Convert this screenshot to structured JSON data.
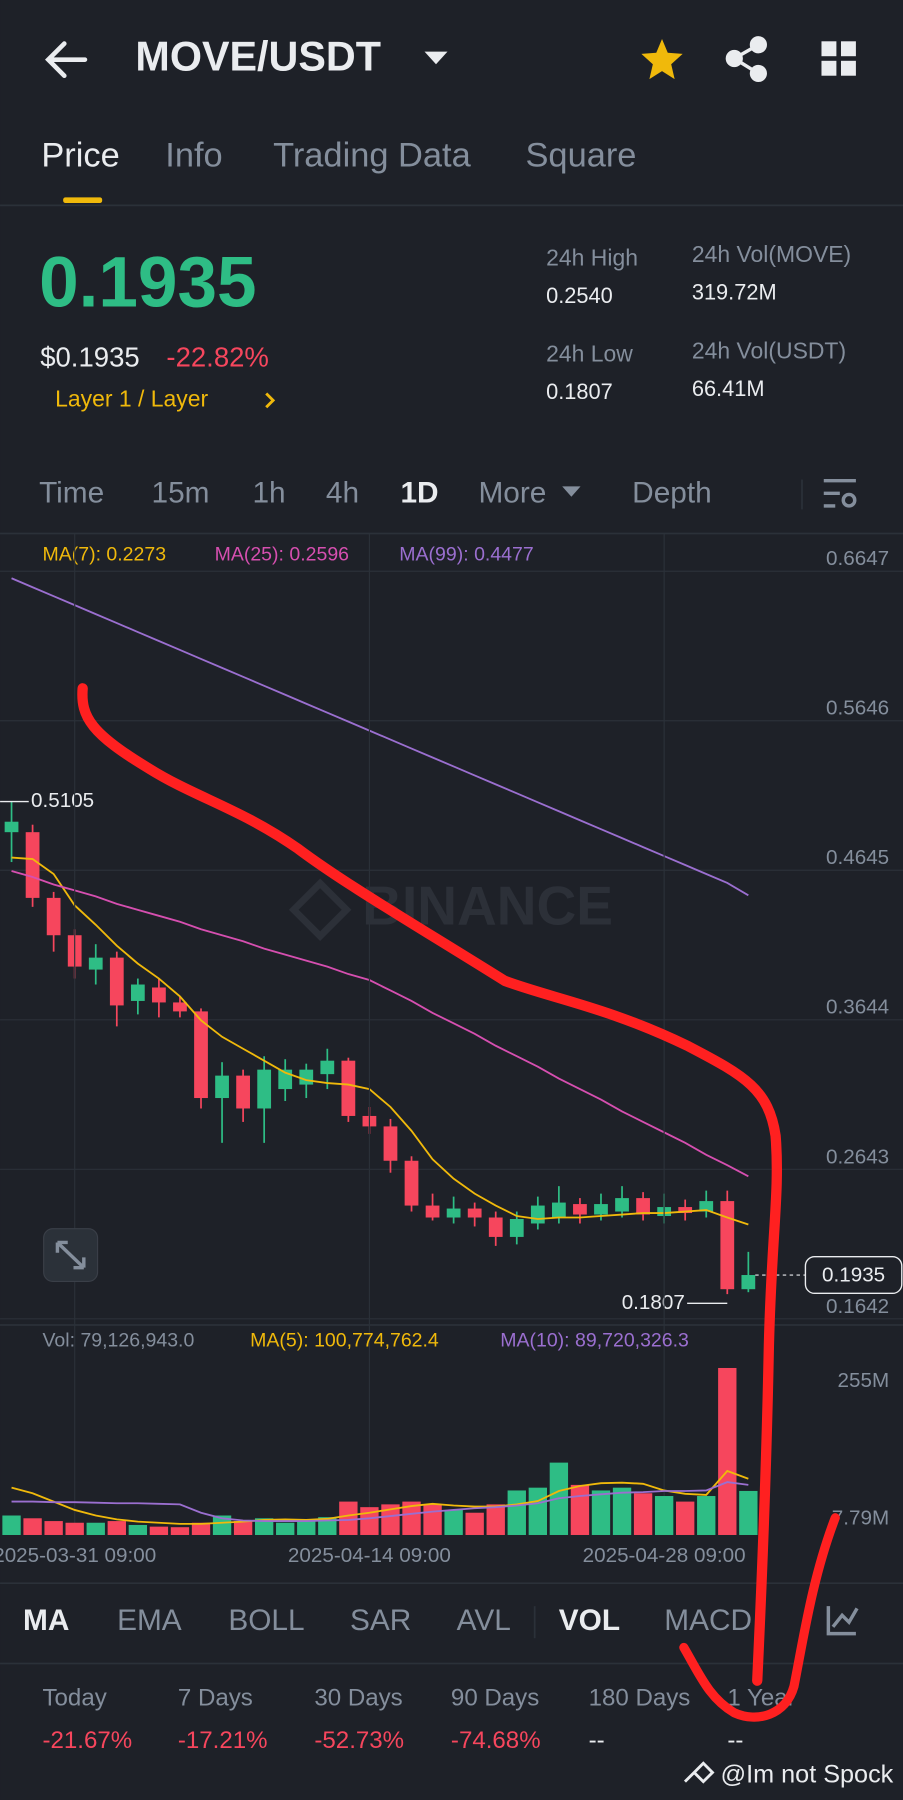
{
  "header": {
    "pair": "MOVE/USDT"
  },
  "tabs": [
    "Price",
    "Info",
    "Trading Data",
    "Square"
  ],
  "price": {
    "last": "0.1935",
    "usd": "$0.1935",
    "change": "-22.82%",
    "tag": "Layer 1 / Layer"
  },
  "stats": [
    {
      "label": "24h High",
      "value": "0.2540"
    },
    {
      "label": "24h Low",
      "value": "0.1807"
    },
    {
      "label": "24h Vol(MOVE)",
      "value": "319.72M"
    },
    {
      "label": "24h Vol(USDT)",
      "value": "66.41M"
    }
  ],
  "intervals": [
    "Time",
    "15m",
    "1h",
    "4h",
    "1D",
    "More",
    "Depth"
  ],
  "watermark": "BINANCE",
  "chart_data": [
    {
      "type": "candlestick",
      "open": [
        0.49,
        0.49,
        0.446,
        0.421,
        0.398,
        0.406,
        0.377,
        0.386,
        0.376,
        0.37,
        0.312,
        0.327,
        0.305,
        0.318,
        0.321,
        0.328,
        0.337,
        0.3,
        0.293,
        0.27,
        0.24,
        0.232,
        0.238,
        0.232,
        0.219,
        0.228,
        0.232,
        0.241,
        0.234,
        0.236,
        0.245,
        0.233,
        0.239,
        0.236,
        0.243,
        0.184
      ],
      "high": [
        0.5105,
        0.495,
        0.45,
        0.425,
        0.415,
        0.41,
        0.392,
        0.392,
        0.38,
        0.372,
        0.336,
        0.331,
        0.34,
        0.338,
        0.335,
        0.345,
        0.339,
        0.306,
        0.298,
        0.273,
        0.248,
        0.246,
        0.242,
        0.236,
        0.236,
        0.246,
        0.253,
        0.245,
        0.248,
        0.253,
        0.249,
        0.248,
        0.244,
        0.25,
        0.25,
        0.209
      ],
      "low": [
        0.47,
        0.44,
        0.41,
        0.392,
        0.388,
        0.36,
        0.368,
        0.366,
        0.366,
        0.305,
        0.282,
        0.296,
        0.282,
        0.31,
        0.312,
        0.318,
        0.296,
        0.288,
        0.262,
        0.236,
        0.23,
        0.228,
        0.226,
        0.213,
        0.214,
        0.224,
        0.228,
        0.228,
        0.23,
        0.232,
        0.23,
        0.228,
        0.23,
        0.232,
        0.1807,
        0.182
      ],
      "close": [
        0.497,
        0.446,
        0.421,
        0.4,
        0.406,
        0.374,
        0.388,
        0.376,
        0.37,
        0.312,
        0.327,
        0.305,
        0.331,
        0.331,
        0.331,
        0.337,
        0.3,
        0.293,
        0.27,
        0.24,
        0.232,
        0.238,
        0.232,
        0.219,
        0.231,
        0.24,
        0.242,
        0.234,
        0.241,
        0.245,
        0.234,
        0.239,
        0.235,
        0.243,
        0.184,
        0.1935
      ],
      "up_color": "#2ebd85",
      "down_color": "#f6465d",
      "series": [
        {
          "name": "MA(7): 0.2273",
          "color": "#f0b90b",
          "values": [
            0.473,
            0.472,
            0.462,
            0.441,
            0.428,
            0.414,
            0.402,
            0.392,
            0.38,
            0.364,
            0.353,
            0.345,
            0.337,
            0.329,
            0.324,
            0.322,
            0.321,
            0.318,
            0.306,
            0.29,
            0.271,
            0.258,
            0.248,
            0.24,
            0.233,
            0.231,
            0.232,
            0.232,
            0.233,
            0.234,
            0.235,
            0.235,
            0.236,
            0.237,
            0.232,
            0.2273
          ]
        },
        {
          "name": "MA(25): 0.2596",
          "color": "#d64fb0",
          "values": [
            0.464,
            0.46,
            0.455,
            0.451,
            0.447,
            0.442,
            0.438,
            0.434,
            0.43,
            0.425,
            0.421,
            0.417,
            0.412,
            0.408,
            0.404,
            0.4,
            0.395,
            0.391,
            0.384,
            0.377,
            0.369,
            0.362,
            0.355,
            0.347,
            0.34,
            0.333,
            0.325,
            0.318,
            0.311,
            0.303,
            0.296,
            0.289,
            0.282,
            0.274,
            0.267,
            0.2596
          ]
        },
        {
          "name": "MA(99): 0.4477",
          "color": "#9b6fd0",
          "values": [
            0.66,
            0.654,
            0.648,
            0.642,
            0.636,
            0.63,
            0.624,
            0.618,
            0.612,
            0.606,
            0.6,
            0.594,
            0.588,
            0.582,
            0.576,
            0.57,
            0.564,
            0.558,
            0.552,
            0.546,
            0.54,
            0.534,
            0.528,
            0.522,
            0.516,
            0.51,
            0.504,
            0.498,
            0.492,
            0.486,
            0.48,
            0.474,
            0.468,
            0.462,
            0.456,
            0.4477
          ]
        }
      ],
      "high_label": "0.5105",
      "low_label": "0.1807",
      "last_label": "0.1935",
      "ylim": [
        0.16,
        0.69
      ],
      "yticks": [
        0.6647,
        0.5646,
        0.4645,
        0.3644,
        0.2643,
        0.1642
      ],
      "grid": true
    },
    {
      "type": "bar",
      "title": "Vol: 79,126,943.0",
      "categories": [
        null,
        null,
        null,
        "2025-03-31 09:00",
        null,
        null,
        null,
        null,
        null,
        null,
        null,
        null,
        null,
        null,
        null,
        null,
        null,
        "2025-04-14 09:00",
        null,
        null,
        null,
        null,
        null,
        null,
        null,
        null,
        null,
        null,
        null,
        null,
        null,
        "2025-04-28 09:00",
        null,
        null,
        null,
        null
      ],
      "values": [
        35,
        30,
        25,
        22,
        22,
        25,
        18,
        15,
        14,
        22,
        35,
        25,
        30,
        22,
        25,
        32,
        60,
        50,
        55,
        60,
        55,
        45,
        40,
        55,
        80,
        85,
        130,
        90,
        80,
        85,
        75,
        70,
        60,
        70,
        300,
        79.13
      ],
      "series": [
        {
          "name": "MA(5): 100,774,762.4",
          "color": "#f0b90b",
          "values": [
            85,
            75,
            60,
            45,
            35,
            28,
            24,
            22,
            20,
            20,
            22,
            24,
            27,
            28,
            27,
            29,
            35,
            40,
            46,
            52,
            56,
            53,
            51,
            51,
            55,
            61,
            79,
            88,
            93,
            94,
            92,
            80,
            74,
            72,
            115,
            101
          ]
        },
        {
          "name": "MA(10): 89,720,326.3",
          "color": "#9b6fd0",
          "values": [
            60,
            60,
            59,
            59,
            58,
            57,
            57,
            56,
            55,
            40,
            30,
            26,
            25,
            25,
            25,
            26,
            27,
            30,
            34,
            38,
            42,
            45,
            48,
            50,
            53,
            57,
            66,
            70,
            73,
            76,
            77,
            79,
            79,
            80,
            95,
            90
          ]
        }
      ],
      "ylim": [
        0,
        305
      ],
      "yticks": [
        {
          "value": 255,
          "label": "255M"
        },
        {
          "value": 7.79,
          "label": "7.79M"
        }
      ]
    }
  ],
  "indicators": [
    "MA",
    "EMA",
    "BOLL",
    "SAR",
    "AVL",
    "VOL",
    "MACD"
  ],
  "performance": [
    {
      "label": "Today",
      "value": "-21.67%"
    },
    {
      "label": "7 Days",
      "value": "-17.21%"
    },
    {
      "label": "30 Days",
      "value": "-52.73%"
    },
    {
      "label": "90 Days",
      "value": "-74.68%"
    },
    {
      "label": "180 Days",
      "value": "--"
    },
    {
      "label": "1 Year",
      "value": "--"
    }
  ],
  "credit": "@Im not Spock"
}
